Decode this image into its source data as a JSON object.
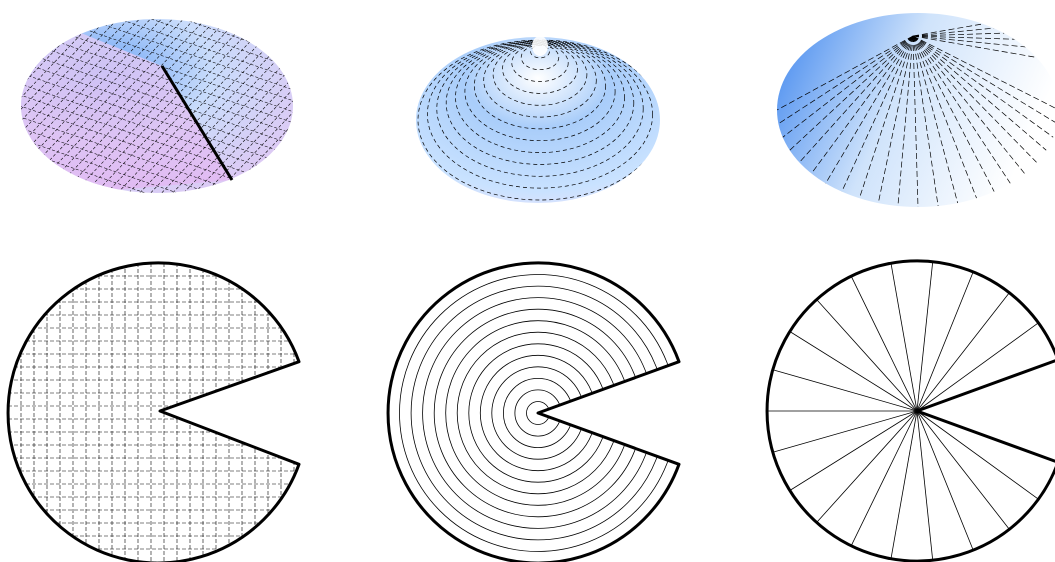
{
  "figure": {
    "panels": [
      {
        "id": "cone-grid",
        "kind": "cone-3d",
        "pattern": "rectangular-grid",
        "cut": true
      },
      {
        "id": "cone-circles",
        "kind": "cone-3d",
        "pattern": "concentric-circles",
        "cut": false
      },
      {
        "id": "cone-rays",
        "kind": "cone-3d",
        "pattern": "radial-lines",
        "cut": false
      },
      {
        "id": "disk-grid",
        "kind": "flat-disk",
        "pattern": "rectangular-grid",
        "wedge_removed_deg": 40
      },
      {
        "id": "disk-circles",
        "kind": "flat-disk",
        "pattern": "concentric-circles",
        "wedge_removed_deg": 40,
        "ring_count": 12
      },
      {
        "id": "disk-rays",
        "kind": "flat-disk",
        "pattern": "radial-lines",
        "wedge_removed_deg": 40,
        "ray_count": 20
      }
    ],
    "colors": {
      "surface_blue": "#5e9cf5",
      "surface_light": "#eef6ff",
      "surface_pink": "#e3b7f2",
      "line": "#000000",
      "background": "#ffffff"
    }
  }
}
